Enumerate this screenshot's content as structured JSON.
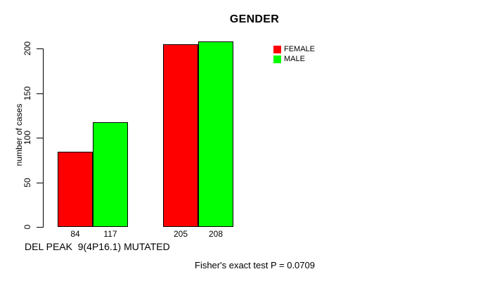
{
  "figure": {
    "background": "#ffffff",
    "text_color": "#000000"
  },
  "chart_data": {
    "type": "bar",
    "title": "GENDER",
    "ylabel": "number of cases",
    "xlabel": "DEL PEAK  9(4P16.1) MUTATED",
    "footnote": "Fisher's exact test P = 0.0709",
    "ylim": [
      0,
      200
    ],
    "yticks": [
      0,
      50,
      100,
      150,
      200
    ],
    "grid": false,
    "legend_position": "top-right",
    "categories": [
      "group-1",
      "group-2"
    ],
    "series": [
      {
        "name": "FEMALE",
        "color": "#ff0000",
        "values": [
          84,
          205
        ]
      },
      {
        "name": "MALE",
        "color": "#00ff00",
        "values": [
          117,
          208
        ]
      }
    ],
    "bar_value_labels_shown": true,
    "colors": {
      "bar_border": "#000000",
      "axis": "#000000"
    }
  }
}
